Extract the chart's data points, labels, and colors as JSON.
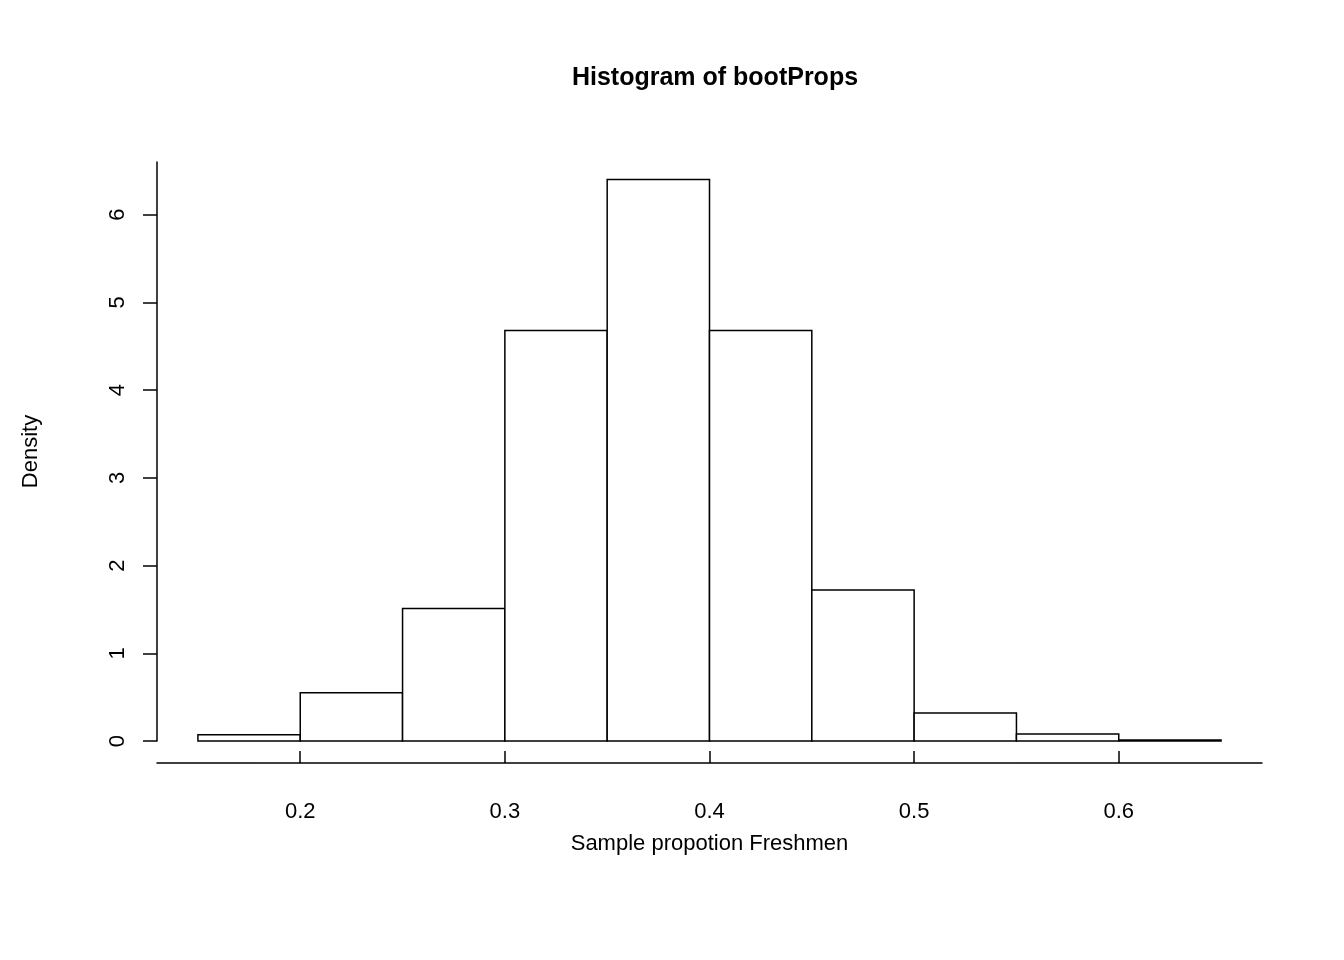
{
  "chart_data": {
    "type": "histogram",
    "title": "Histogram of bootProps",
    "xlabel": "Sample propotion Freshmen",
    "ylabel": "Density",
    "bins": [
      0.15,
      0.2,
      0.25,
      0.3,
      0.35,
      0.4,
      0.45,
      0.5,
      0.55,
      0.6,
      0.65
    ],
    "values": [
      0.07,
      0.55,
      1.51,
      4.68,
      6.4,
      4.68,
      1.72,
      0.32,
      0.08,
      0.01
    ],
    "color": "#ffffff",
    "xlim": [
      0.13,
      0.67
    ],
    "xticks": [
      0.2,
      0.3,
      0.4,
      0.5,
      0.6
    ],
    "ylim": [
      0,
      6.6
    ],
    "yticks": [
      0,
      1,
      2,
      3,
      4,
      5,
      6
    ],
    "grid": false
  }
}
